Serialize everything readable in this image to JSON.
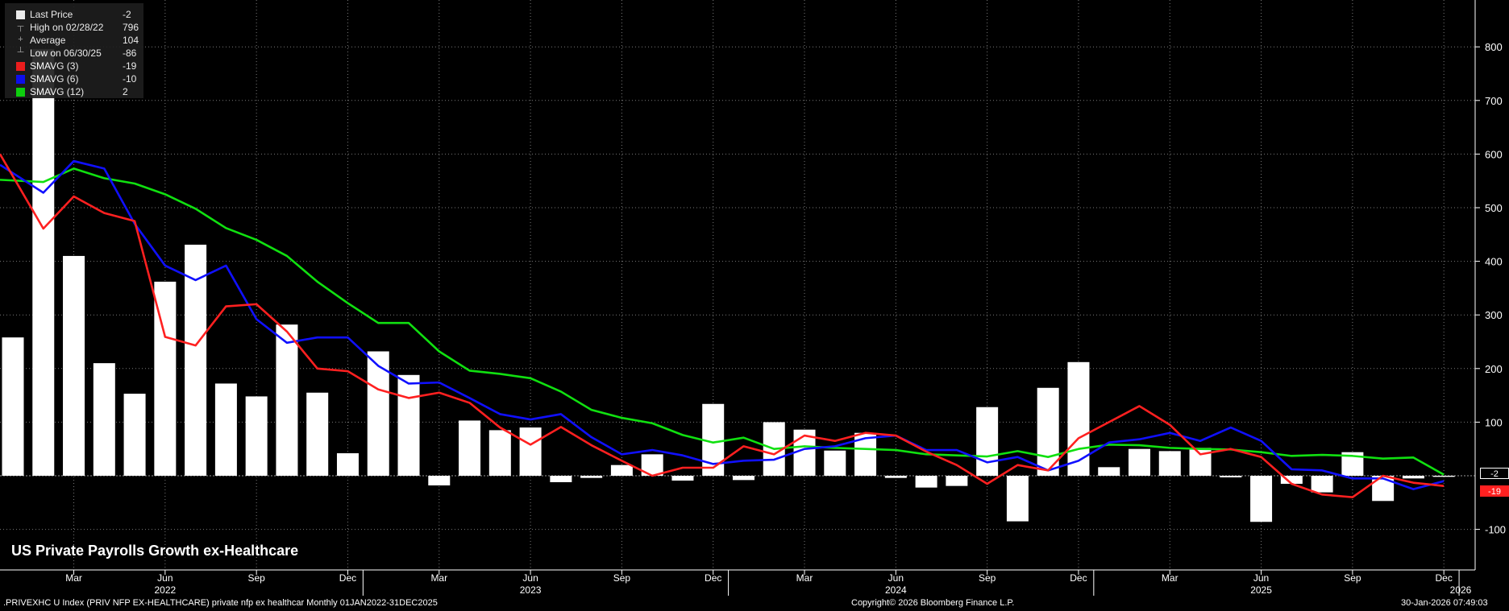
{
  "chart_data": {
    "type": "bar",
    "title": "US Private Payrolls Growth ex-Healthcare",
    "x_axis": {
      "month_labels": [
        "Mar",
        "Jun",
        "Sep",
        "Dec",
        "Mar",
        "Jun",
        "Sep",
        "Dec",
        "Mar",
        "Jun",
        "Sep",
        "Dec",
        "Mar",
        "Jun",
        "Sep",
        "Dec"
      ],
      "year_labels": [
        "2022",
        "2023",
        "2024",
        "2025",
        "2026"
      ]
    },
    "y_axis": {
      "ylim": [
        -170,
        880
      ],
      "ticks": [
        800,
        700,
        600,
        500,
        400,
        300,
        200,
        100,
        -100
      ]
    },
    "grid": true,
    "legend_position": "top-left",
    "categories": [
      "2022-01",
      "2022-02",
      "2022-03",
      "2022-04",
      "2022-05",
      "2022-06",
      "2022-07",
      "2022-08",
      "2022-09",
      "2022-10",
      "2022-11",
      "2022-12",
      "2023-01",
      "2023-02",
      "2023-03",
      "2023-04",
      "2023-05",
      "2023-06",
      "2023-07",
      "2023-08",
      "2023-09",
      "2023-10",
      "2023-11",
      "2023-12",
      "2024-01",
      "2024-02",
      "2024-03",
      "2024-04",
      "2024-05",
      "2024-06",
      "2024-07",
      "2024-08",
      "2024-09",
      "2024-10",
      "2024-11",
      "2024-12",
      "2025-01",
      "2025-02",
      "2025-03",
      "2025-04",
      "2025-05",
      "2025-06",
      "2025-07",
      "2025-08",
      "2025-09",
      "2025-10",
      "2025-11",
      "2025-12"
    ],
    "series": [
      {
        "name": "Last Price",
        "kind": "bar",
        "color": "#ffffff",
        "values": [
          258,
          796,
          410,
          210,
          153,
          362,
          431,
          172,
          148,
          282,
          155,
          42,
          232,
          188,
          -18,
          103,
          85,
          90,
          -12,
          -4,
          20,
          40,
          -9,
          134,
          -8,
          100,
          86,
          47,
          80,
          -4,
          -22,
          -19,
          128,
          -85,
          164,
          212,
          16,
          50,
          46,
          52,
          -3,
          -86,
          -15,
          -31,
          44,
          -47,
          -5,
          -2
        ]
      },
      {
        "name": "SMAVG (3)",
        "kind": "line",
        "color": "#ff2020",
        "values": [
          600,
          461,
          521,
          490,
          475,
          259,
          243,
          316,
          320,
          269,
          200,
          195,
          161,
          145,
          155,
          136,
          90,
          58,
          91,
          57,
          28,
          0,
          15,
          15,
          55,
          40,
          75,
          65,
          80,
          75,
          45,
          20,
          -15,
          20,
          10,
          70,
          100,
          130,
          95,
          40,
          50,
          35,
          -15,
          -35,
          -40,
          0,
          -13,
          -19
        ]
      },
      {
        "name": "SMAVG (6)",
        "kind": "line",
        "color": "#1010ff",
        "values": [
          580,
          528,
          587,
          573,
          470,
          392,
          365,
          392,
          292,
          248,
          258,
          258,
          205,
          172,
          174,
          145,
          115,
          105,
          115,
          72,
          40,
          48,
          38,
          22,
          28,
          30,
          50,
          55,
          70,
          75,
          48,
          48,
          25,
          35,
          10,
          28,
          62,
          68,
          80,
          65,
          90,
          65,
          12,
          10,
          -5,
          -5,
          -25,
          -10
        ]
      },
      {
        "name": "SMAVG (12)",
        "kind": "line",
        "color": "#10e010",
        "values": [
          552,
          548,
          573,
          555,
          545,
          525,
          498,
          462,
          440,
          410,
          362,
          322,
          285,
          285,
          232,
          196,
          190,
          182,
          157,
          123,
          108,
          98,
          76,
          62,
          71,
          50,
          55,
          52,
          50,
          48,
          40,
          38,
          36,
          46,
          35,
          50,
          58,
          57,
          52,
          50,
          49,
          44,
          37,
          39,
          37,
          32,
          34,
          2
        ]
      }
    ],
    "legend": [
      {
        "label": "Last Price",
        "value": "-2",
        "marker": "swatch",
        "color": "#ffffff"
      },
      {
        "label": "High on 02/28/22",
        "value": "796",
        "marker": "high"
      },
      {
        "label": "Average",
        "value": "104",
        "marker": "avg"
      },
      {
        "label": "Low on 06/30/25",
        "value": "-86",
        "marker": "low"
      },
      {
        "label": "SMAVG (3)",
        "value": "-19",
        "marker": "swatch",
        "color": "#ff2020"
      },
      {
        "label": "SMAVG (6)",
        "value": "-10",
        "marker": "swatch",
        "color": "#1010ff"
      },
      {
        "label": "SMAVG (12)",
        "value": "2",
        "marker": "swatch",
        "color": "#10e010"
      }
    ],
    "last_value_tags": [
      {
        "value": "-2",
        "level": -2,
        "bg": "#000000",
        "fg": "#ffffff",
        "border": "#ffffff"
      },
      {
        "value": "-19",
        "level": -19,
        "bg": "#ff2020",
        "fg": "#ffffff",
        "border": "#ff2020"
      }
    ]
  },
  "footer": {
    "left": ".PRIVEXHC U Index (PRIV NFP EX-HEALTHCARE) private nfp ex healthcar Monthly 01JAN2022-31DEC2025",
    "center": "Copyright© 2026 Bloomberg Finance L.P.",
    "right": "30-Jan-2026 07:49:03"
  }
}
